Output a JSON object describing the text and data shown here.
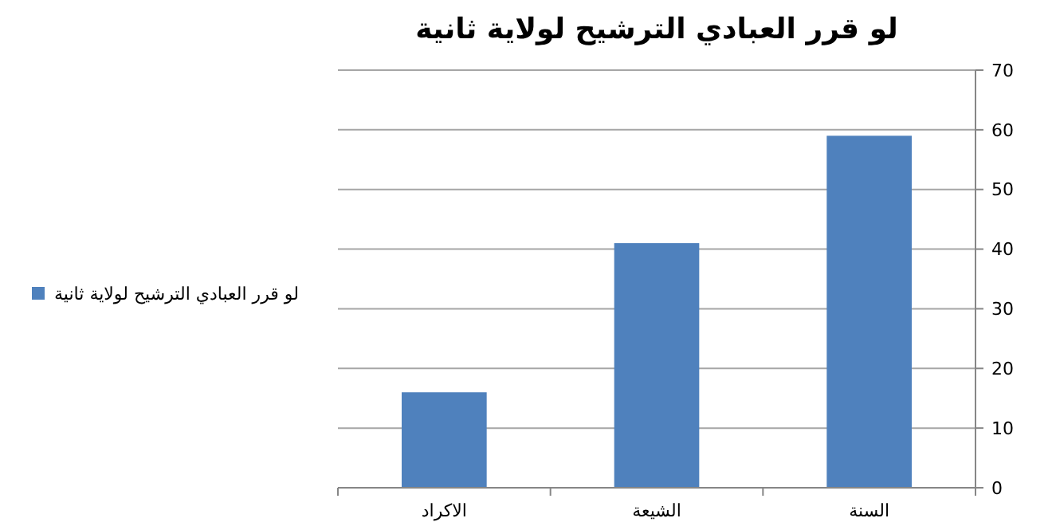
{
  "chart_data": {
    "type": "bar",
    "title": "لو قرر العبادي الترشيح لولاية ثانية",
    "categories": [
      "الاكراد",
      "الشيعة",
      "السنة"
    ],
    "series": [
      {
        "name": "لو قرر العبادي الترشيح لولاية ثانية",
        "color": "#4f81bd",
        "values": [
          16,
          41,
          59
        ]
      }
    ],
    "ylim": [
      0,
      70
    ],
    "yticks": [
      0,
      10,
      20,
      30,
      40,
      50,
      60,
      70
    ],
    "grid": "y",
    "legend": "left"
  }
}
